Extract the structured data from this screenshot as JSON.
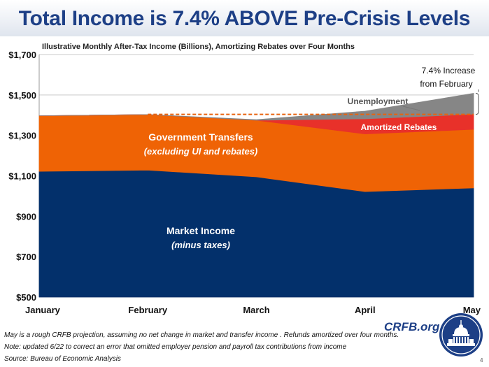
{
  "title": "Total Income is 7.4% ABOVE Pre-Crisis Levels",
  "chart_data": {
    "type": "area",
    "title": "Total Income is 7.4% ABOVE Pre-Crisis Levels",
    "subtitle": "Illustrative Monthly After-Tax Income (Billions), Amortizing Rebates over Four Months",
    "categories": [
      "January",
      "February",
      "March",
      "April",
      "May"
    ],
    "ylim": [
      500,
      1700
    ],
    "yticks": [
      "$500",
      "$700",
      "$900",
      "$1,100",
      "$1,300",
      "$1,500",
      "$1,700"
    ],
    "ytick_values": [
      500,
      700,
      900,
      1100,
      1300,
      1500,
      1700
    ],
    "grid": true,
    "series": [
      {
        "name": "Market Income",
        "label_line2": "(minus taxes)",
        "color": "#03306b",
        "values": [
          1122,
          1128,
          1095,
          1022,
          1040
        ]
      },
      {
        "name": "Government Transfers",
        "label_line2": "(excluding UI and rebates)",
        "color": "#ef6305",
        "values": [
          275,
          275,
          280,
          285,
          290
        ]
      },
      {
        "name": "Amortized Rebates",
        "color": "#e8312a",
        "values": [
          0,
          0,
          0,
          75,
          75
        ]
      },
      {
        "name": "Unemployment",
        "color": "#868686",
        "values": [
          0,
          0,
          3,
          38,
          103
        ]
      }
    ],
    "reference_line": {
      "value": 1404,
      "color": "#e8630f"
    },
    "annotation": {
      "line1": "7.4% Increase",
      "line2": "from February"
    }
  },
  "footnotes": [
    "May is a rough CRFB projection, assuming no net change in market and transfer income . Refunds amortized over four months.",
    "Note: updated 6/22 to correct an error that omitted employer pension and payroll tax contributions from income",
    "Source: Bureau of Economic Analysis"
  ],
  "brand": "CRFB.org",
  "page_number": "4"
}
